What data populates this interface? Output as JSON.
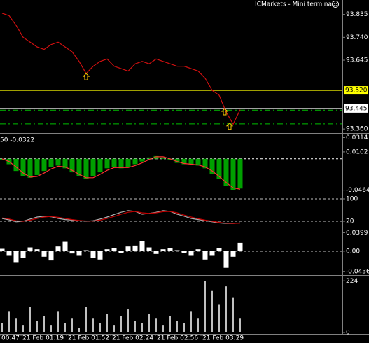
{
  "chart_data": [
    {
      "type": "line",
      "title": "ICMarkets - Mini terminal",
      "ylim": [
        93.343,
        93.895
      ],
      "yticks": [
        {
          "value": 93.835,
          "label": "93.835"
        },
        {
          "value": 93.74,
          "label": "93.740"
        },
        {
          "value": 93.645,
          "label": "93.645"
        },
        {
          "value": 93.36,
          "label": "93.360"
        }
      ],
      "series": [
        {
          "color": "#d01010",
          "values": [
            93.84,
            93.83,
            93.79,
            93.74,
            93.72,
            93.7,
            93.69,
            93.71,
            93.72,
            93.7,
            93.68,
            93.64,
            93.59,
            93.62,
            93.64,
            93.65,
            93.62,
            93.61,
            93.6,
            93.63,
            93.64,
            93.63,
            93.65,
            93.64,
            93.63,
            93.62,
            93.62,
            93.61,
            93.6,
            93.57,
            93.52,
            93.5,
            93.43,
            93.38,
            93.44
          ]
        }
      ],
      "levels": [
        {
          "value": 93.52,
          "label": "93.520",
          "color": "#ffff00"
        },
        {
          "value": 93.445,
          "label": "93.445",
          "color": "#ffffff"
        }
      ],
      "dashed_levels": {
        "color": "#00c000",
        "values": [
          93.438,
          93.381
        ]
      },
      "arrows": {
        "color": "#ffcc00",
        "x": [
          12,
          31.8,
          32.5
        ],
        "values": [
          93.575,
          93.43,
          93.37
        ]
      }
    },
    {
      "type": "histogram",
      "label": "50 -0.0322",
      "ylim": [
        -0.052,
        0.036
      ],
      "yticks": [
        -0.0464,
        0.0102,
        0.0314
      ],
      "series": [
        {
          "color": "#00a000",
          "values": [
            -0.002,
            -0.008,
            -0.018,
            -0.026,
            -0.028,
            -0.024,
            -0.018,
            -0.012,
            -0.01,
            -0.014,
            -0.02,
            -0.026,
            -0.03,
            -0.026,
            -0.02,
            -0.014,
            -0.012,
            -0.014,
            -0.012,
            -0.008,
            -0.004,
            0.002,
            0.004,
            0.002,
            -0.002,
            -0.006,
            -0.008,
            -0.008,
            -0.01,
            -0.014,
            -0.022,
            -0.03,
            -0.04,
            -0.046,
            -0.044
          ]
        },
        {
          "color": "#ff3030",
          "values": [
            0.0,
            -0.004,
            -0.012,
            -0.021,
            -0.027,
            -0.026,
            -0.021,
            -0.015,
            -0.011,
            -0.012,
            -0.017,
            -0.023,
            -0.028,
            -0.028,
            -0.023,
            -0.017,
            -0.013,
            -0.013,
            -0.013,
            -0.01,
            -0.006,
            -0.001,
            0.003,
            0.003,
            0.0,
            -0.004,
            -0.007,
            -0.008,
            -0.009,
            -0.012,
            -0.018,
            -0.026,
            -0.035,
            -0.043,
            -0.045
          ]
        }
      ]
    },
    {
      "type": "line",
      "ylim": [
        0,
        110
      ],
      "yticks": [
        20,
        100
      ],
      "grid": true,
      "series": [
        {
          "color": "#b0b0b0",
          "values": [
            30,
            25,
            18,
            20,
            28,
            35,
            38,
            36,
            30,
            26,
            24,
            22,
            20,
            22,
            28,
            35,
            44,
            52,
            58,
            55,
            45,
            48,
            52,
            58,
            55,
            45,
            38,
            30,
            26,
            22,
            18,
            14,
            12,
            12,
            14
          ]
        },
        {
          "color": "#c00000",
          "values": [
            32,
            28,
            22,
            20,
            24,
            30,
            35,
            37,
            34,
            30,
            26,
            23,
            21,
            21,
            24,
            30,
            37,
            45,
            52,
            55,
            50,
            48,
            50,
            54,
            55,
            50,
            42,
            35,
            29,
            24,
            20,
            16,
            13,
            12,
            13
          ]
        }
      ]
    },
    {
      "type": "histogram",
      "ylim": [
        -0.05,
        0.048
      ],
      "yticks": [
        -0.0436,
        {
          "value": 0,
          "label": "0.00"
        },
        0.0399
      ],
      "series": [
        {
          "color": "#ffffff",
          "values": [
            0.005,
            -0.01,
            -0.025,
            -0.015,
            0.008,
            0.004,
            -0.012,
            -0.02,
            0.01,
            0.02,
            -0.005,
            -0.01,
            0.002,
            -0.014,
            -0.018,
            0.004,
            0.006,
            -0.004,
            0.01,
            0.012,
            0.022,
            0.008,
            -0.006,
            0.004,
            0.006,
            0.002,
            -0.004,
            -0.01,
            0.004,
            -0.018,
            -0.01,
            0.006,
            -0.036,
            -0.012,
            0.018
          ]
        }
      ]
    },
    {
      "type": "bar",
      "ylim": [
        0,
        240
      ],
      "yticks": [
        0,
        224
      ],
      "xticks": [
        {
          "value": -0.3,
          "label": "00:47"
        },
        {
          "value": 2.7,
          "label": "21 Feb 01:19"
        },
        {
          "value": 9.2,
          "label": "21 Feb 01:52"
        },
        {
          "value": 15.5,
          "label": "21 Feb 02:24"
        },
        {
          "value": 21.9,
          "label": "21 Feb 02:56"
        },
        {
          "value": 28.4,
          "label": "21 Feb 03:29"
        }
      ],
      "series": [
        {
          "color": "#c0c0c0",
          "values": [
            40,
            90,
            60,
            30,
            110,
            50,
            70,
            30,
            90,
            40,
            60,
            20,
            110,
            60,
            40,
            80,
            30,
            70,
            100,
            50,
            40,
            80,
            60,
            30,
            70,
            50,
            40,
            90,
            60,
            224,
            180,
            120,
            200,
            150,
            60
          ]
        }
      ]
    }
  ]
}
